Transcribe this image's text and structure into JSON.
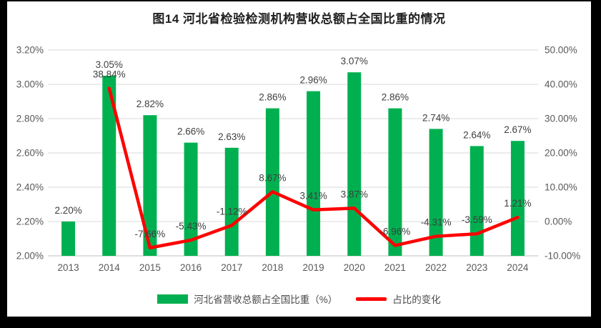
{
  "title": "图14 河北省检验检测机构营收总额占全国比重的情况",
  "chart_data": {
    "type": "combo-bar-line",
    "categories": [
      "2013",
      "2014",
      "2015",
      "2016",
      "2017",
      "2018",
      "2019",
      "2020",
      "2021",
      "2022",
      "2023",
      "2024"
    ],
    "series": [
      {
        "name": "河北省营收总额占全国比重（%）",
        "type": "bar",
        "axis": "left",
        "color": "#00B050",
        "values": [
          2.2,
          3.05,
          2.82,
          2.66,
          2.63,
          2.86,
          2.96,
          3.07,
          2.86,
          2.74,
          2.64,
          2.67
        ],
        "labels": [
          "2.20%",
          "3.05%",
          "2.82%",
          "2.66%",
          "2.63%",
          "2.86%",
          "2.96%",
          "3.07%",
          "2.86%",
          "2.74%",
          "2.64%",
          "2.67%"
        ]
      },
      {
        "name": "占比的变化",
        "type": "line",
        "axis": "right",
        "color": "#FE0000",
        "values": [
          null,
          38.84,
          -7.66,
          -5.43,
          -1.12,
          8.67,
          3.41,
          3.87,
          -6.96,
          -4.31,
          -3.59,
          1.21
        ],
        "labels": [
          null,
          "38.84%",
          "-7.66%",
          "-5.43%",
          "-1.12%",
          "8.67%",
          "3.41%",
          "3.87%",
          "-6.96%",
          "-4.31%",
          "-3.59%",
          "1.21%"
        ]
      }
    ],
    "left_axis": {
      "min": 2.0,
      "max": 3.2,
      "ticks": [
        "2.00%",
        "2.20%",
        "2.40%",
        "2.60%",
        "2.80%",
        "3.00%",
        "3.20%"
      ]
    },
    "right_axis": {
      "min": -10,
      "max": 50,
      "ticks": [
        "-10.00%",
        "0.00%",
        "10.00%",
        "20.00%",
        "30.00%",
        "40.00%",
        "50.00%"
      ]
    },
    "grid": true,
    "legend_position": "bottom",
    "label_color": "#3f3f3f",
    "tick_color": "#595959",
    "gridline_color": "#D9D9D9",
    "axisline_color": "#BFBFBF"
  }
}
